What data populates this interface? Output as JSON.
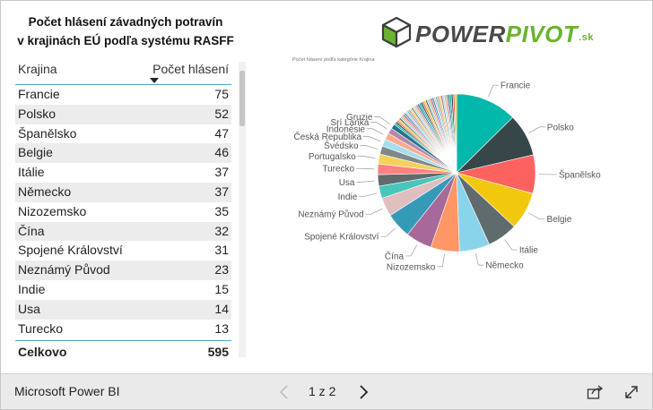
{
  "report": {
    "title_line1": "Počet hlásení závadných potravín",
    "title_line2": "v krajinách EÚ podľa systému RASFF"
  },
  "logo": {
    "main": "POWER",
    "accent": "PIVOT",
    "suffix": ".sk"
  },
  "table": {
    "col_country": "Krajina",
    "col_count": "Počet hlásení",
    "rows": [
      {
        "country": "Francie",
        "count": "75"
      },
      {
        "country": "Polsko",
        "count": "52"
      },
      {
        "country": "Španělsko",
        "count": "47"
      },
      {
        "country": "Belgie",
        "count": "46"
      },
      {
        "country": "Itálie",
        "count": "37"
      },
      {
        "country": "Německo",
        "count": "37"
      },
      {
        "country": "Nizozemsko",
        "count": "35"
      },
      {
        "country": "Čína",
        "count": "32"
      },
      {
        "country": "Spojené Království",
        "count": "31"
      },
      {
        "country": "Neznámý Původ",
        "count": "23"
      },
      {
        "country": "Indie",
        "count": "15"
      },
      {
        "country": "Usa",
        "count": "14"
      },
      {
        "country": "Turecko",
        "count": "13"
      }
    ],
    "total_label": "Celkovo",
    "total_value": "595"
  },
  "chart_caption": "Počet hlásení podľa kategórie Krajina",
  "chart_data": {
    "type": "pie",
    "total": 595,
    "slices": [
      {
        "label": "Francie",
        "value": 75,
        "color": "#01b8aa"
      },
      {
        "label": "Polsko",
        "value": 52,
        "color": "#374649"
      },
      {
        "label": "Španělsko",
        "value": 47,
        "color": "#fd625e"
      },
      {
        "label": "Belgie",
        "value": 46,
        "color": "#f2c80f"
      },
      {
        "label": "Itálie",
        "value": 37,
        "color": "#5f6b6d"
      },
      {
        "label": "Německo",
        "value": 37,
        "color": "#8ad4eb"
      },
      {
        "label": "Nizozemsko",
        "value": 35,
        "color": "#fe9666"
      },
      {
        "label": "Čína",
        "value": 32,
        "color": "#a66999"
      },
      {
        "label": "Spojené Království",
        "value": 31,
        "color": "#3599b8"
      },
      {
        "label": "Neznámý Původ",
        "value": 23,
        "color": "#dfbfbf"
      },
      {
        "label": "Indie",
        "value": 15,
        "color": "#4ac5bb"
      },
      {
        "label": "Usa",
        "value": 14,
        "color": "#5f6b6d"
      },
      {
        "label": "Turecko",
        "value": 13,
        "color": "#fb8281"
      },
      {
        "label": "Portugalsko",
        "value": 12,
        "color": "#f4d25a"
      },
      {
        "label": "Švédsko",
        "value": 10,
        "color": "#7f898a"
      },
      {
        "label": "Česká Republika",
        "value": 9,
        "color": "#a4ddee"
      },
      {
        "label": "Indonésie",
        "value": 8,
        "color": "#fdab89"
      },
      {
        "label": "Srí Lanka",
        "value": 7,
        "color": "#b687ac"
      },
      {
        "label": "Gruzie",
        "value": 6,
        "color": "#28738a"
      }
    ]
  },
  "footer": {
    "brand": "Microsoft Power BI",
    "pager": "1 z 2"
  },
  "icons": {
    "prev": "chevron-left-icon",
    "next": "chevron-right-icon",
    "share": "share-icon",
    "fullscreen": "fullscreen-icon"
  }
}
